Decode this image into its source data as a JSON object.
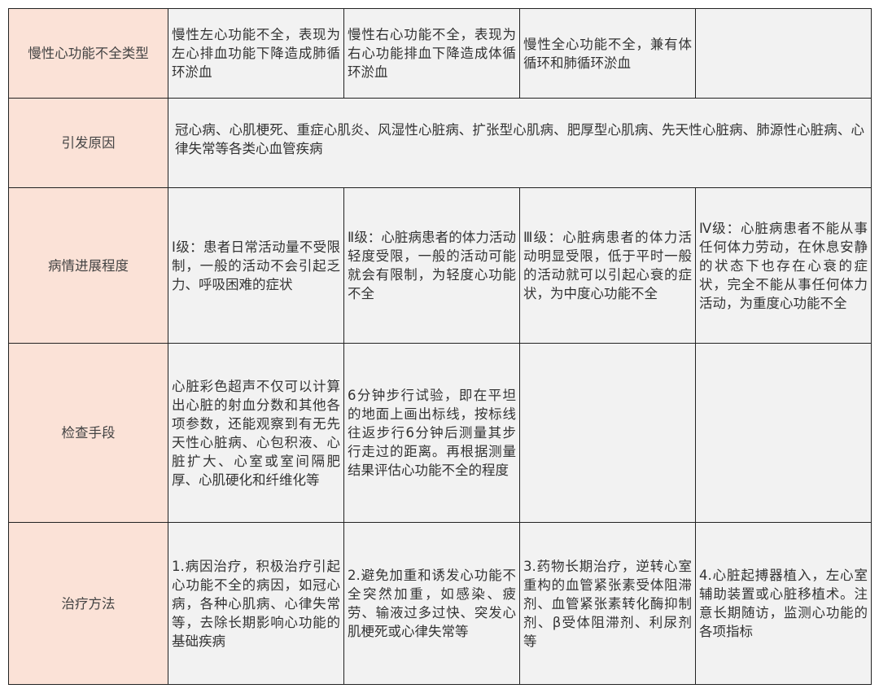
{
  "colors": {
    "header_bg": "#fbe2d7",
    "cell_bg": "#f2f2f2",
    "border": "#222222"
  },
  "rows": [
    {
      "header": "慢性心功能不全类型",
      "cells": [
        "慢性左心功能不全，表现为左心排血功能下降造成肺循环淤血",
        "慢性右心功能不全，表现为右心功能排血下降造成体循环淤血",
        "慢性全心功能不全，兼有体循环和肺循环淤血",
        ""
      ]
    },
    {
      "header": "引发原因",
      "merged": "冠心病、心肌梗死、重症心肌炎、风湿性心脏病、扩张型心肌病、肥厚型心肌病、先天性心脏病、肺源性心脏病、心律失常等各类心血管疾病"
    },
    {
      "header": "病情进展程度",
      "cells": [
        "Ⅰ级：患者日常活动量不受限制，一般的活动不会引起乏力、呼吸困难的症状",
        "Ⅱ级：心脏病患者的体力活动轻度受限，一般的活动可能就会有限制，为轻度心功能不全",
        "Ⅲ级：心脏病患者的体力活动明显受限，低于平时一般的活动就可以引起心衰的症状，为中度心功能不全",
        "Ⅳ级：心脏病患者不能从事任何体力劳动，在休息安静的状态下也存在心衰的症状，完全不能从事任何体力活动，为重度心功能不全"
      ]
    },
    {
      "header": "检查手段",
      "cells": [
        "心脏彩色超声不仅可以计算出心脏的射血分数和其他各项参数，还能观察到有无先天性心脏病、心包积液、心脏扩大、心室或室间隔肥厚、心肌硬化和纤维化等",
        "6分钟步行试验，即在平坦的地面上画出标线，按标线往返步行6分钟后测量其步行走过的距离。再根据测量结果评估心功能不全的程度",
        "",
        ""
      ]
    },
    {
      "header": "治疗方法",
      "cells": [
        "1.病因治疗，积极治疗引起心功能不全的病因，如冠心病，各种心肌病、心律失常等，去除长期影响心功能的基础疾病",
        "2.避免加重和诱发心功能不全突然加重，如感染、疲劳、输液过多过快、突发心肌梗死或心律失常等",
        "3.药物长期治疗，逆转心室重构的血管紧张素受体阻滞剂、血管紧张素转化酶抑制剂、β受体阻滞剂、利尿剂等",
        "4.心脏起搏器植入，左心室辅助装置或心脏移植术。注意长期随访，监测心功能的各项指标"
      ]
    }
  ]
}
